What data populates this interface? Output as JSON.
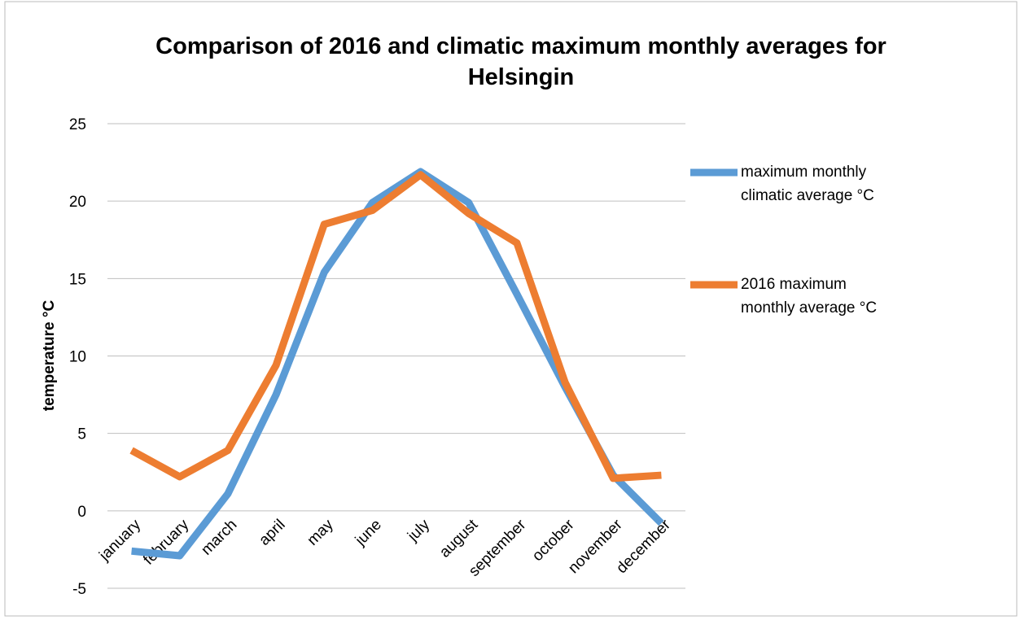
{
  "chart_data": {
    "type": "line",
    "title": "Comparison of 2016 and climatic maximum monthly  averages for Helsingin",
    "y_label": "temperature °C",
    "categories": [
      "january",
      "february",
      "march",
      "april",
      "may",
      "june",
      "july",
      "august",
      "september",
      "october",
      "november",
      "december"
    ],
    "series": [
      {
        "name": "maximum monthly climatic average °C",
        "color": "#5b9bd5",
        "values": [
          -2.6,
          -2.9,
          1.1,
          7.5,
          15.4,
          19.9,
          21.9,
          19.9,
          14.0,
          8.0,
          2.3,
          -0.8
        ]
      },
      {
        "name": "2016 maximum monthly average °C",
        "color": "#ed7d31",
        "values": [
          3.9,
          2.2,
          3.9,
          9.4,
          18.5,
          19.4,
          21.7,
          19.2,
          17.3,
          8.3,
          2.1,
          2.3
        ]
      }
    ],
    "ylim": [
      -5,
      25
    ],
    "yticks": [
      -5,
      0,
      5,
      10,
      15,
      20,
      25
    ],
    "grid": true,
    "legend": "right"
  }
}
